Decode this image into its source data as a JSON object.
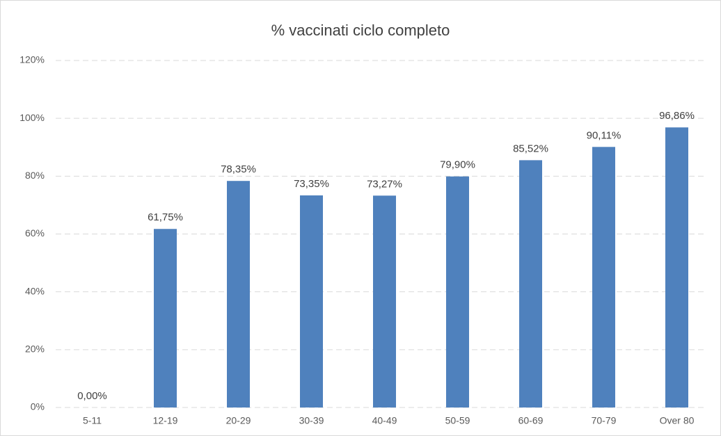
{
  "chart_data": {
    "type": "bar",
    "title": "% vaccinati ciclo completo",
    "categories": [
      "5-11",
      "12-19",
      "20-29",
      "30-39",
      "40-49",
      "50-59",
      "60-69",
      "70-79",
      "Over 80"
    ],
    "values": [
      0,
      61.75,
      78.35,
      73.35,
      73.27,
      79.9,
      85.52,
      90.11,
      96.86
    ],
    "value_labels": [
      "0,00%",
      "61,75%",
      "78,35%",
      "73,35%",
      "73,27%",
      "79,90%",
      "85,52%",
      "90,11%",
      "96,86%"
    ],
    "color": "#4f81bd",
    "ylim": [
      0,
      120
    ],
    "yticks": [
      {
        "value": 0,
        "label": "0%"
      },
      {
        "value": 20,
        "label": "20%"
      },
      {
        "value": 40,
        "label": "40%"
      },
      {
        "value": 60,
        "label": "60%"
      },
      {
        "value": 80,
        "label": "80%"
      },
      {
        "value": 100,
        "label": "100%"
      },
      {
        "value": 120,
        "label": "120%"
      }
    ],
    "grid": true
  }
}
